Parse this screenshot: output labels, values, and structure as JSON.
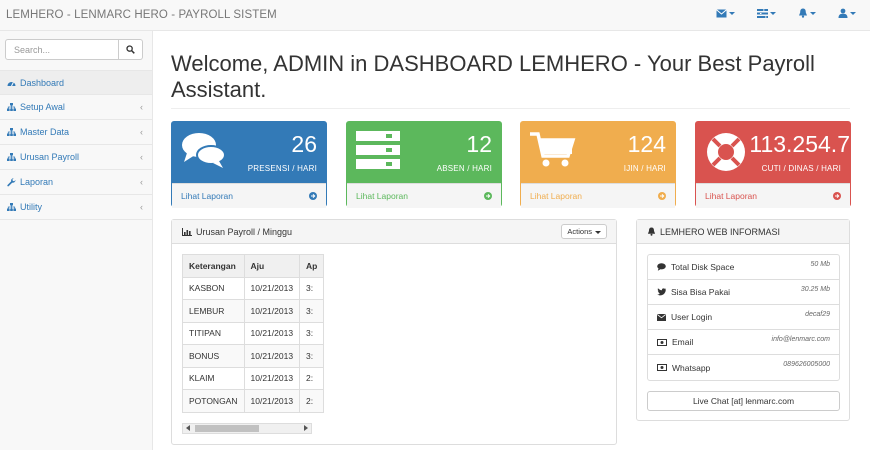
{
  "navbar": {
    "brand": "LEMHERO - LENMARC HERO - PAYROLL SISTEM",
    "icons": [
      "envelope-icon",
      "tasks-icon",
      "bell-icon",
      "user-icon"
    ]
  },
  "sidebar": {
    "search_placeholder": "Search...",
    "items": [
      {
        "label": "Dashboard",
        "icon": "dashboard-icon",
        "active": true
      },
      {
        "label": "Setup Awal",
        "icon": "sitemap-icon"
      },
      {
        "label": "Master Data",
        "icon": "sitemap-icon"
      },
      {
        "label": "Urusan Payroll",
        "icon": "sitemap-icon"
      },
      {
        "label": "Laporan",
        "icon": "wrench-icon"
      },
      {
        "label": "Utility",
        "icon": "sitemap-icon"
      }
    ],
    "arrow": "‹"
  },
  "main": {
    "title": "Welcome, ADMIN in DASHBOARD LEMHERO - Your Best Payroll Assistant.",
    "stats": [
      {
        "number": "26",
        "label": "PRESENSI / HARI",
        "link": "Lihat Laporan",
        "icon": "comments-icon",
        "color": "#337ab7"
      },
      {
        "number": "12",
        "label": "ABSEN / HARI",
        "link": "Lihat Laporan",
        "icon": "tasks-icon",
        "color": "#5cb85c"
      },
      {
        "number": "124",
        "label": "IJIN / HARI",
        "link": "Lihat Laporan",
        "icon": "shopping-cart-icon",
        "color": "#f0ad4e"
      },
      {
        "number": "113.254.7",
        "label": "CUTI / DINAS / HARI",
        "link": "Lihat Laporan",
        "icon": "support-icon",
        "color": "#d9534f"
      }
    ],
    "payroll_panel": {
      "title": "Urusan Payroll / Minggu",
      "actions": "Actions",
      "columns": [
        "Keterangan",
        "Aju",
        "Ap"
      ],
      "rows": [
        [
          "KASBON",
          "10/21/2013",
          "3:"
        ],
        [
          "LEMBUR",
          "10/21/2013",
          "3:"
        ],
        [
          "TITIPAN",
          "10/21/2013",
          "3:"
        ],
        [
          "BONUS",
          "10/21/2013",
          "3:"
        ],
        [
          "KLAIM",
          "10/21/2013",
          "2:"
        ],
        [
          "POTONGAN",
          "10/21/2013",
          "2:"
        ]
      ]
    },
    "info_panel": {
      "title": "LEMHERO WEB INFORMASI",
      "items": [
        {
          "label": "Total Disk Space",
          "value": "50 Mb",
          "icon": "comment-icon"
        },
        {
          "label": "Sisa Bisa Pakai",
          "value": "30.25 Mb",
          "icon": "twitter-icon"
        },
        {
          "label": "User Login",
          "value": "decaf29",
          "icon": "envelope-icon"
        },
        {
          "label": "Email",
          "value": "info@lenmarc.com",
          "icon": "money-icon"
        },
        {
          "label": "Whatsapp",
          "value": "089626005000",
          "icon": "money-icon"
        }
      ],
      "live_chat": "Live Chat [at] lenmarc.com"
    }
  }
}
